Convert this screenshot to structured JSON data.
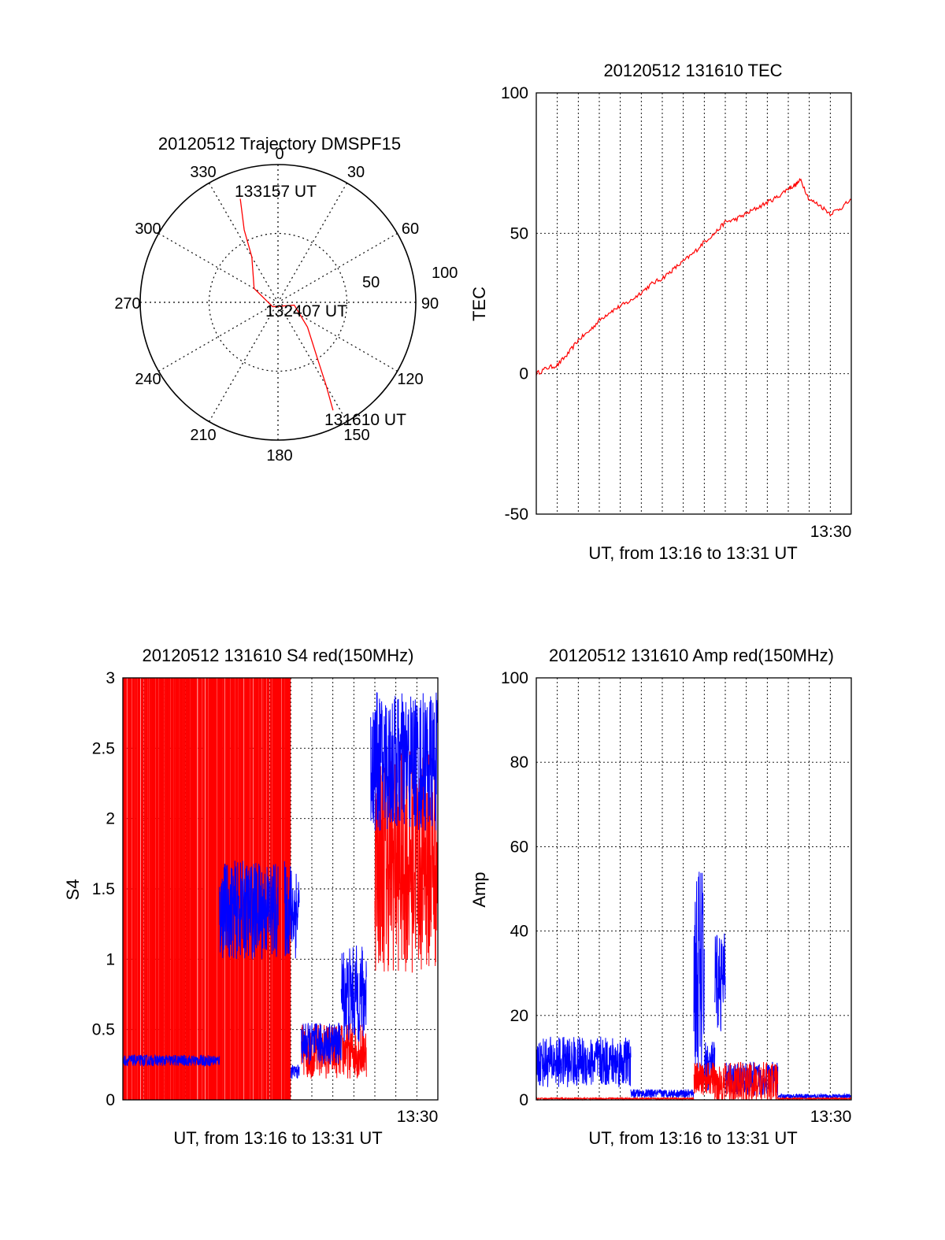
{
  "colors": {
    "red": "#ff0000",
    "blue": "#0000ff",
    "axis": "#000000"
  },
  "polar": {
    "title": "20120512 Trajectory DMSPF15",
    "angle_labels": [
      "0",
      "30",
      "60",
      "90",
      "120",
      "150",
      "180",
      "210",
      "240",
      "270",
      "300",
      "330"
    ],
    "ring_labels": [
      "50",
      "100"
    ],
    "start_label": "131610 UT",
    "mid_label": "132407 UT",
    "end_label": "133157 UT"
  },
  "chart_data": [
    {
      "type": "polar-line",
      "title": "20120512 Trajectory DMSPF15",
      "angles": [
        0,
        30,
        60,
        90,
        120,
        150,
        180,
        210,
        240,
        270,
        300,
        330
      ],
      "rings": [
        50,
        100
      ],
      "series": [
        {
          "points": [
            {
              "az": 153,
              "r": 88
            },
            {
              "az": 150,
              "r": 70
            },
            {
              "az": 145,
              "r": 50
            },
            {
              "az": 130,
              "r": 28
            },
            {
              "az": 100,
              "r": 12
            },
            {
              "az": 230,
              "r": 5
            },
            {
              "az": 300,
              "r": 20
            },
            {
              "az": 330,
              "r": 38
            },
            {
              "az": 335,
              "r": 58
            },
            {
              "az": 340,
              "r": 80
            }
          ]
        }
      ],
      "annotations": [
        "131610 UT",
        "132407 UT",
        "133157 UT"
      ]
    },
    {
      "type": "line",
      "title": "20120512 131610 TEC",
      "xlabel": "UT, from 13:16 to 13:31 UT",
      "ylabel": "TEC",
      "x_tick_labels": [
        "13:30"
      ],
      "y_ticks": [
        -50,
        0,
        50,
        100
      ],
      "ylim": [
        -50,
        100
      ],
      "grid": true,
      "series": [
        {
          "color": "red",
          "x_minutes": [
            0,
            0.5,
            1,
            1.5,
            2,
            2.5,
            3,
            3.5,
            4,
            4.5,
            5,
            5.5,
            6,
            6.5,
            7,
            7.5,
            8,
            8.5,
            9,
            9.5,
            10,
            10.5,
            11,
            11.5,
            12,
            12.3,
            12.6,
            13,
            13.5,
            14,
            14.5,
            15
          ],
          "values": [
            0,
            2,
            3,
            7,
            12,
            15,
            19,
            22,
            24,
            26,
            29,
            32,
            34,
            37,
            40,
            43,
            47,
            50,
            54,
            55,
            57,
            59,
            61,
            63,
            66,
            67,
            69,
            62,
            60,
            57,
            59,
            62
          ]
        }
      ]
    },
    {
      "type": "line",
      "title": "20120512 131610 S4 red(150MHz)",
      "xlabel": "UT, from 13:16 to 13:31 UT",
      "ylabel": "S4",
      "x_tick_labels": [
        "13:30"
      ],
      "y_ticks": [
        0,
        0.5,
        1,
        1.5,
        2,
        2.5,
        3
      ],
      "ylim": [
        0,
        3
      ],
      "grid": true,
      "series": [
        {
          "color": "red",
          "segments": [
            {
              "x": [
                0,
                7.5
              ],
              "pattern": "saturated-spikes",
              "low": 0,
              "high": 3
            },
            {
              "x": [
                7.5,
                8
              ],
              "pattern": "saturated-spikes",
              "low": 0,
              "high": 3
            },
            {
              "x": [
                8.5,
                11.6
              ],
              "base": 0.35,
              "amp": 0.2
            },
            {
              "x": [
                12,
                15
              ],
              "base": 1.7,
              "amp": 0.8
            }
          ]
        },
        {
          "color": "blue",
          "segments": [
            {
              "x": [
                0,
                4.6
              ],
              "base": 0.28,
              "amp": 0.04
            },
            {
              "x": [
                4.6,
                7.4
              ],
              "base": 1.35,
              "amp": 0.35
            },
            {
              "x": [
                7.7,
                8.4
              ],
              "base": 1.35,
              "amp": 0.35
            },
            {
              "x": [
                8.0,
                8.4
              ],
              "base": 0.2,
              "amp": 0.05
            },
            {
              "x": [
                8.5,
                10.4
              ],
              "base": 0.4,
              "amp": 0.15
            },
            {
              "x": [
                10.4,
                11.6
              ],
              "base": 0.75,
              "amp": 0.35
            },
            {
              "x": [
                11.8,
                15
              ],
              "base": 2.4,
              "amp": 0.5
            }
          ]
        }
      ]
    },
    {
      "type": "line",
      "title": "20120512 131610 Amp red(150MHz)",
      "xlabel": "UT, from 13:16 to 13:31 UT",
      "ylabel": "Amp",
      "x_tick_labels": [
        "13:30"
      ],
      "y_ticks": [
        0,
        20,
        40,
        60,
        80,
        100
      ],
      "ylim": [
        0,
        100
      ],
      "grid": true,
      "series": [
        {
          "color": "blue",
          "segments": [
            {
              "x": [
                0,
                4.5
              ],
              "base": 9,
              "amp": 6
            },
            {
              "x": [
                4.5,
                7.5
              ],
              "base": 1.5,
              "amp": 1
            },
            {
              "x": [
                7.5,
                8.0
              ],
              "base": 30,
              "amp": 25
            },
            {
              "x": [
                8.0,
                8.5
              ],
              "base": 8,
              "amp": 6
            },
            {
              "x": [
                8.5,
                9.0
              ],
              "base": 28,
              "amp": 12
            },
            {
              "x": [
                9.0,
                11.5
              ],
              "base": 5,
              "amp": 4
            },
            {
              "x": [
                11.5,
                15
              ],
              "base": 0.8,
              "amp": 0.6
            }
          ]
        },
        {
          "color": "red",
          "segments": [
            {
              "x": [
                0,
                7.5
              ],
              "base": 0.3,
              "amp": 0.2
            },
            {
              "x": [
                7.5,
                8.5
              ],
              "base": 5,
              "amp": 4
            },
            {
              "x": [
                8.5,
                11.5
              ],
              "base": 4,
              "amp": 5
            },
            {
              "x": [
                11.5,
                15
              ],
              "base": 0.3,
              "amp": 0.2
            }
          ]
        }
      ]
    }
  ]
}
